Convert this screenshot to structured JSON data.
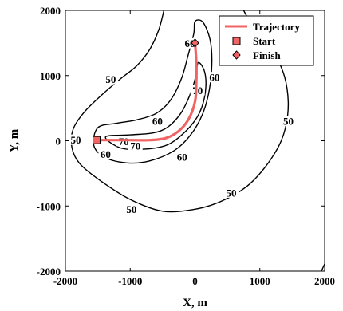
{
  "chart_data": {
    "type": "line",
    "xlabel": "X, m",
    "ylabel": "Y, m",
    "xlim": [
      -2000,
      2000
    ],
    "ylim": [
      -2000,
      2000
    ],
    "xticks": [
      -2000,
      -1000,
      0,
      1000,
      2000
    ],
    "yticks": [
      -2000,
      -1000,
      0,
      1000,
      2000
    ],
    "grid": false,
    "legend_position": "top-right",
    "legend": [
      {
        "label": "Trajectory",
        "marker": "line",
        "color": "#f06464"
      },
      {
        "label": "Start",
        "marker": "square",
        "color": "#f06464"
      },
      {
        "label": "Finish",
        "marker": "diamond",
        "color": "#f06464"
      }
    ],
    "series": [
      {
        "name": "Trajectory",
        "x": [
          -1520,
          -1300,
          -1000,
          -700,
          -450,
          -250,
          -100,
          0,
          20,
          20,
          0
        ],
        "y": [
          10,
          10,
          10,
          10,
          40,
          150,
          330,
          600,
          900,
          1200,
          1500
        ]
      }
    ],
    "markers": {
      "start": {
        "label": "Start",
        "x": -1520,
        "y": 10
      },
      "finish": {
        "label": "Finish",
        "x": 0,
        "y": 1500
      }
    },
    "contours": [
      {
        "level": "50",
        "points": [
          [
            -480,
            2000
          ],
          [
            -560,
            1700
          ],
          [
            -700,
            1400
          ],
          [
            -900,
            1150
          ],
          [
            -1150,
            950
          ],
          [
            -1420,
            720
          ],
          [
            -1700,
            450
          ],
          [
            -1880,
            180
          ],
          [
            -1900,
            -100
          ],
          [
            -1780,
            -350
          ],
          [
            -1450,
            -620
          ],
          [
            -1000,
            -900
          ],
          [
            -500,
            -1080
          ],
          [
            0,
            -1050
          ],
          [
            400,
            -930
          ],
          [
            800,
            -700
          ],
          [
            1100,
            -380
          ],
          [
            1330,
            0
          ],
          [
            1430,
            400
          ],
          [
            1420,
            800
          ],
          [
            1320,
            1150
          ],
          [
            1120,
            1450
          ],
          [
            920,
            1700
          ],
          [
            750,
            2000
          ]
        ],
        "labels": [
          {
            "text": "50",
            "x": -1300,
            "y": 940
          },
          {
            "text": "50",
            "x": -1840,
            "y": 10
          },
          {
            "text": "50",
            "x": -980,
            "y": -1050
          },
          {
            "text": "50",
            "x": 560,
            "y": -800
          },
          {
            "text": "50",
            "x": 1440,
            "y": 300
          }
        ]
      },
      {
        "level": "50",
        "points": [
          [
            1950,
            -2000
          ],
          [
            2000,
            -1890
          ]
        ],
        "labels": []
      },
      {
        "level": "60",
        "points": [
          [
            -1500,
            200
          ],
          [
            -1200,
            270
          ],
          [
            -900,
            320
          ],
          [
            -600,
            420
          ],
          [
            -380,
            620
          ],
          [
            -210,
            950
          ],
          [
            -110,
            1300
          ],
          [
            -20,
            1640
          ],
          [
            0,
            1830
          ],
          [
            120,
            1820
          ],
          [
            230,
            1560
          ],
          [
            260,
            1200
          ],
          [
            220,
            780
          ],
          [
            120,
            420
          ],
          [
            -60,
            100
          ],
          [
            -320,
            -150
          ],
          [
            -700,
            -310
          ],
          [
            -1050,
            -340
          ],
          [
            -1380,
            -260
          ],
          [
            -1560,
            -80
          ],
          [
            -1500,
            200
          ]
        ],
        "labels": [
          {
            "text": "60",
            "x": -580,
            "y": 300
          },
          {
            "text": "60",
            "x": -80,
            "y": 1490
          },
          {
            "text": "60",
            "x": 300,
            "y": 970
          },
          {
            "text": "60",
            "x": -1380,
            "y": -210
          },
          {
            "text": "60",
            "x": -200,
            "y": -250
          }
        ]
      },
      {
        "level": "70",
        "points": [
          [
            -1380,
            60
          ],
          [
            -1000,
            90
          ],
          [
            -650,
            120
          ],
          [
            -420,
            210
          ],
          [
            -220,
            420
          ],
          [
            -80,
            700
          ],
          [
            10,
            980
          ],
          [
            50,
            1200
          ],
          [
            150,
            1050
          ],
          [
            160,
            750
          ],
          [
            70,
            430
          ],
          [
            -120,
            170
          ],
          [
            -420,
            -60
          ],
          [
            -800,
            -130
          ],
          [
            -1150,
            -110
          ],
          [
            -1380,
            60
          ]
        ],
        "labels": [
          {
            "text": "70",
            "x": -1100,
            "y": -10
          },
          {
            "text": "70",
            "x": -920,
            "y": -80
          },
          {
            "text": "70",
            "x": 40,
            "y": 770
          }
        ]
      }
    ]
  }
}
